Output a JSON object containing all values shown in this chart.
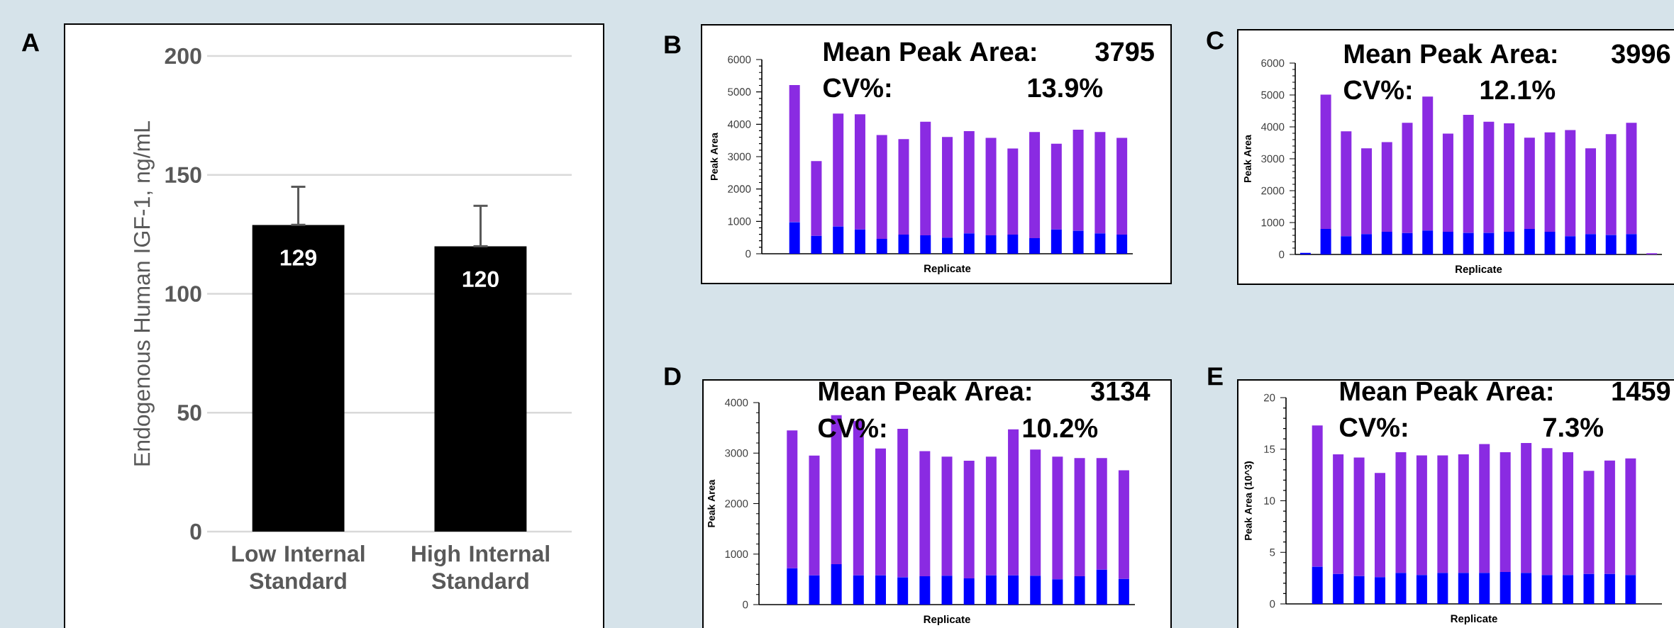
{
  "chart_data": [
    {
      "type": "bar",
      "title": "A",
      "ylabel": "Endogenous Human IGF-1, ng/mL",
      "categories": [
        "Low Internal Standard",
        "High Internal Standard"
      ],
      "values": [
        129,
        120
      ],
      "color": "#000000",
      "errors": [
        [
          129,
          145
        ],
        [
          120,
          137
        ]
      ],
      "data_labels": true,
      "ylim": [
        0,
        200
      ],
      "yticks": [
        0,
        50,
        100,
        150,
        200
      ],
      "grid": "y"
    },
    {
      "type": "bar",
      "title": "B",
      "xlabel": "Replicate",
      "ylabel": "Peak Area",
      "categories": [
        null,
        null,
        null,
        null,
        null,
        null,
        null,
        null,
        null,
        null,
        null,
        null,
        null,
        null,
        null,
        null,
        null
      ],
      "stacked": true,
      "series": [
        {
          "color": "#0000ff",
          "values": [
            0,
            980,
            550,
            840,
            750,
            460,
            590,
            570,
            500,
            630,
            570,
            590,
            480,
            750,
            710,
            630,
            590
          ]
        },
        {
          "color": "#8a2be2",
          "values": [
            0,
            4230,
            2310,
            3490,
            3560,
            3210,
            2950,
            3510,
            3110,
            3160,
            3010,
            2660,
            3280,
            2650,
            3120,
            3130,
            2990
          ]
        }
      ],
      "ylim": [
        0,
        6000
      ],
      "yticks": [
        0,
        1000,
        2000,
        3000,
        4000,
        5000,
        6000
      ],
      "annotations": [
        "Mean Peak Area:",
        "3795",
        "CV%:",
        "13.9%"
      ]
    },
    {
      "type": "bar",
      "title": "C",
      "xlabel": "Replicate",
      "ylabel": "Peak Area",
      "categories": [
        null,
        null,
        null,
        null,
        null,
        null,
        null,
        null,
        null,
        null,
        null,
        null,
        null,
        null,
        null,
        null,
        null,
        null
      ],
      "stacked": true,
      "series": [
        {
          "color": "#0000ff",
          "values": [
            50,
            800,
            570,
            640,
            710,
            670,
            750,
            710,
            680,
            680,
            710,
            800,
            710,
            570,
            640,
            610,
            640,
            0
          ]
        },
        {
          "color": "#8a2be2",
          "values": [
            0,
            4210,
            3290,
            2690,
            2810,
            3460,
            4200,
            3080,
            3700,
            3480,
            3400,
            2860,
            3120,
            3330,
            2690,
            3160,
            3490,
            40
          ]
        }
      ],
      "ylim": [
        0,
        6000
      ],
      "yticks": [
        0,
        1000,
        2000,
        3000,
        4000,
        5000,
        6000
      ],
      "annotations": [
        "Mean Peak Area:",
        "3996",
        "CV%:",
        "12.1%"
      ]
    },
    {
      "type": "bar",
      "title": "D",
      "xlabel": "Replicate",
      "ylabel": "Peak Area",
      "categories": [
        null,
        null,
        null,
        null,
        null,
        null,
        null,
        null,
        null,
        null,
        null,
        null,
        null,
        null,
        null,
        null,
        null
      ],
      "stacked": true,
      "series": [
        {
          "color": "#0000ff",
          "values": [
            0,
            720,
            580,
            800,
            580,
            580,
            540,
            560,
            570,
            520,
            580,
            580,
            570,
            500,
            560,
            690,
            510
          ]
        },
        {
          "color": "#8a2be2",
          "values": [
            0,
            2730,
            2370,
            2950,
            3060,
            2510,
            2940,
            2480,
            2360,
            2330,
            2350,
            2890,
            2500,
            2430,
            2340,
            2210,
            2150
          ]
        }
      ],
      "ylim": [
        0,
        4000
      ],
      "yticks": [
        0,
        1000,
        2000,
        3000,
        4000
      ],
      "annotations": [
        "Mean Peak Area:",
        "3134",
        "CV%:",
        "10.2%"
      ]
    },
    {
      "type": "bar",
      "title": "E",
      "xlabel": "Replicate",
      "ylabel": "Peak Area (10^3)",
      "categories": [
        null,
        null,
        null,
        null,
        null,
        null,
        null,
        null,
        null,
        null,
        null,
        null,
        null,
        null,
        null,
        null,
        null,
        null
      ],
      "stacked": true,
      "series": [
        {
          "color": "#0000ff",
          "values": [
            null,
            3.6,
            2.9,
            2.7,
            2.6,
            3.0,
            2.8,
            3.0,
            3.0,
            3.0,
            3.1,
            3.0,
            2.8,
            2.8,
            2.9,
            2.9,
            2.8,
            null
          ]
        },
        {
          "color": "#8a2be2",
          "values": [
            null,
            13.7,
            11.6,
            11.5,
            10.1,
            11.7,
            11.6,
            11.4,
            11.5,
            12.5,
            11.6,
            12.6,
            12.3,
            11.9,
            10.0,
            11.0,
            11.3,
            null
          ]
        }
      ],
      "ylim": [
        0,
        20
      ],
      "yticks": [
        0,
        5,
        10,
        15,
        20
      ],
      "annotations": [
        "Mean Peak Area:",
        "1459",
        "CV%:",
        "7.3%"
      ]
    }
  ]
}
